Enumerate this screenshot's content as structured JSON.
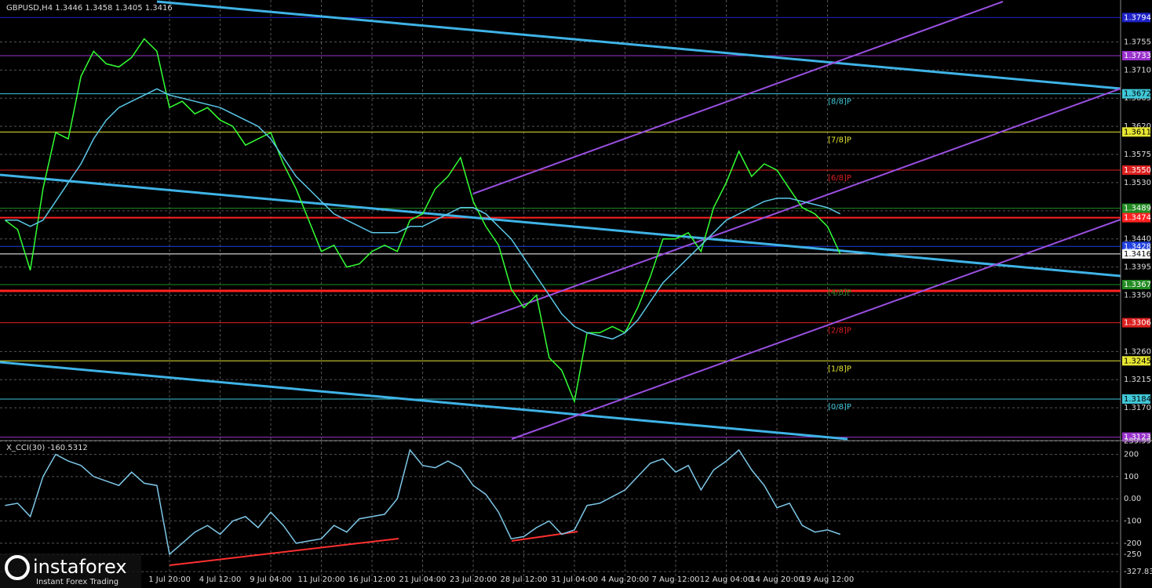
{
  "chart_data": [
    {
      "type": "line",
      "title": "GBPUSD,H4  1.3446 1.3458 1.3405 1.3416",
      "categories": [
        null,
        null,
        null,
        null,
        null,
        null,
        null,
        null,
        null,
        null,
        null,
        null,
        null,
        "1 Jul 20:00",
        null,
        null,
        null,
        "4 Jul 12:00",
        null,
        null,
        null,
        "9 Jul 04:00",
        null,
        null,
        null,
        "11 Jul 20:00",
        null,
        null,
        null,
        "16 Jul 12:00",
        null,
        null,
        null,
        "21 Jul 04:00",
        null,
        null,
        null,
        "23 Jul 20:00",
        null,
        null,
        null,
        "28 Jul 12:00",
        null,
        null,
        null,
        "31 Jul 04:00",
        null,
        null,
        null,
        "4 Aug 20:00",
        null,
        null,
        null,
        "7 Aug 12:00",
        null,
        null,
        null,
        "12 Aug 04:00",
        null,
        null,
        null,
        "14 Aug 20:00",
        null,
        null,
        null,
        "19 Aug 12:00",
        null
      ],
      "series": [
        {
          "color": "#33ff33",
          "values": [
            1.347,
            1.3455,
            1.339,
            1.352,
            1.361,
            1.36,
            1.37,
            1.374,
            1.372,
            1.3715,
            1.373,
            1.376,
            1.374,
            1.365,
            1.366,
            1.364,
            1.365,
            1.363,
            1.362,
            1.359,
            1.36,
            1.361,
            1.356,
            1.352,
            1.347,
            1.342,
            1.343,
            1.3395,
            1.34,
            1.342,
            1.343,
            1.342,
            1.347,
            1.348,
            1.352,
            1.354,
            1.357,
            1.35,
            1.346,
            1.343,
            1.336,
            1.333,
            1.335,
            1.325,
            1.323,
            1.318,
            1.329,
            1.329,
            1.33,
            1.329,
            1.333,
            1.338,
            1.344,
            1.344,
            1.345,
            1.342,
            1.349,
            1.353,
            1.358,
            1.354,
            1.356,
            1.355,
            1.352,
            1.349,
            1.348,
            1.346,
            1.3416
          ]
        },
        {
          "color": "#5bc8e8",
          "values": [
            1.347,
            1.347,
            1.346,
            1.347,
            1.35,
            1.353,
            1.356,
            1.36,
            1.363,
            1.365,
            1.366,
            1.367,
            1.368,
            1.367,
            1.3665,
            1.366,
            1.3655,
            1.365,
            1.364,
            1.363,
            1.362,
            1.36,
            1.357,
            1.354,
            1.352,
            1.35,
            1.348,
            1.347,
            1.346,
            1.345,
            1.345,
            1.345,
            1.346,
            1.346,
            1.347,
            1.348,
            1.349,
            1.349,
            1.348,
            1.346,
            1.344,
            1.341,
            1.338,
            1.335,
            1.332,
            1.33,
            1.329,
            1.3285,
            1.328,
            1.329,
            1.331,
            1.334,
            1.337,
            1.339,
            1.341,
            1.343,
            1.345,
            1.347,
            1.348,
            1.349,
            1.35,
            1.3505,
            1.3505,
            1.35,
            1.3495,
            1.349,
            1.348
          ]
        }
      ],
      "ylim": [
        1.312,
        1.3822
      ],
      "yticks": [
        1.3755,
        {
          "value": 1.371,
          "label": "1.3710"
        },
        1.3665,
        {
          "value": 1.362,
          "label": "1.3620"
        },
        1.3575,
        {
          "value": 1.353,
          "label": "1.3530"
        },
        1.3485,
        {
          "value": 1.344,
          "label": "1.3440"
        },
        1.3395,
        {
          "value": 1.335,
          "label": "1.3350"
        },
        {
          "value": 1.326,
          "label": "1.3260"
        },
        1.3215,
        {
          "value": 1.317,
          "label": "1.3170"
        }
      ],
      "grid": true,
      "levels": [
        {
          "value": 1.3794,
          "label": "1.3794",
          "color": "#1e22c8"
        },
        {
          "value": 1.3733,
          "label": "1.3733",
          "color": "#9932cc"
        },
        {
          "value": 1.3672,
          "label": "1.3672",
          "color": "#40c8d8",
          "murrey": "[8/8]P"
        },
        {
          "value": 1.3611,
          "label": "1.3611",
          "color": "#e6e632",
          "murrey": "[7/8]P"
        },
        {
          "value": 1.355,
          "label": "1.3550",
          "color": "#dc2020",
          "murrey": "[6/8]P"
        },
        {
          "value": 1.3489,
          "label": "1.3489",
          "color": "#228b22"
        },
        {
          "value": 1.3474,
          "label": "1.3474",
          "color": "#ff2020",
          "width": 2
        },
        {
          "value": 1.3428,
          "label": "1.3428",
          "color": "#2040e0"
        },
        {
          "value": 1.3416,
          "label": "1.3416",
          "color": "#ffffff"
        },
        {
          "value": 1.3367,
          "label": "1.3367",
          "color": "#228b22",
          "murrey": "[4/8]P"
        },
        {
          "value": 1.3357,
          "color": "#ff2020",
          "width": 3
        },
        {
          "value": 1.3306,
          "label": "1.3306",
          "color": "#dc2020",
          "murrey": "[2/8]P"
        },
        {
          "value": 1.3245,
          "label": "1.3245",
          "color": "#e6e632",
          "murrey": "[1/8]P"
        },
        {
          "value": 1.3184,
          "label": "1.3184",
          "color": "#40c8d8",
          "murrey": "[0/8]P"
        },
        {
          "value": 1.3123,
          "label": "1.3123",
          "color": "#9932cc"
        }
      ]
    },
    {
      "type": "line",
      "title": "X_CCI(30) -160.5312",
      "series": [
        {
          "color": "#7ec8e8",
          "values": [
            -30,
            -20,
            -80,
            100,
            200,
            170,
            150,
            100,
            80,
            60,
            120,
            70,
            60,
            -250,
            -200,
            -150,
            -120,
            -160,
            -100,
            -80,
            -130,
            -60,
            -120,
            -200,
            -190,
            -180,
            -120,
            -150,
            -90,
            -80,
            -70,
            0,
            220,
            150,
            140,
            170,
            140,
            60,
            20,
            -60,
            -180,
            -170,
            -130,
            -100,
            -160,
            -140,
            -30,
            -20,
            10,
            40,
            100,
            160,
            180,
            120,
            150,
            40,
            130,
            170,
            220,
            130,
            60,
            -40,
            -20,
            -120,
            -150,
            -140,
            -160
          ]
        }
      ],
      "ylim": [
        -384,
        262
      ],
      "yticks": [
        259.9969,
        200,
        100,
        {
          "value": 0,
          "label": "0.00"
        },
        -100,
        -200,
        -250,
        {
          "value": -327.832,
          "label": "-327.8320"
        }
      ]
    }
  ],
  "watermark": {
    "brand": "instaforex",
    "tagline": "Instant Forex Trading"
  }
}
